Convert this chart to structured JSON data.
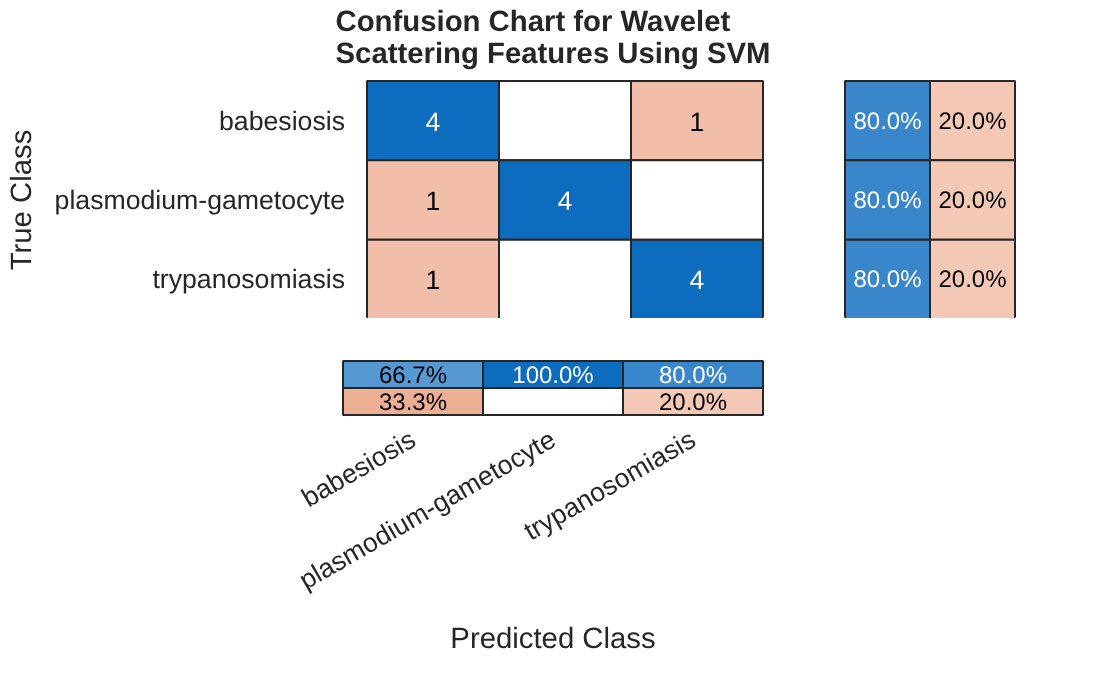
{
  "chart_data": [
    {
      "type": "heatmap",
      "title": "Confusion Chart for Wavelet\nScattering Features Using SVM",
      "ylabel": "True Class",
      "categories": [
        null,
        null,
        null
      ],
      "y_categories": [
        "babesiosis",
        "plasmodium-gametocyte",
        "trypanosomiasis"
      ],
      "cells": [
        [
          4,
          null,
          1
        ],
        [
          1,
          4,
          null
        ],
        [
          1,
          null,
          4
        ]
      ],
      "cell_labels": [
        [
          "4",
          null,
          "1"
        ],
        [
          "1",
          "4",
          null
        ],
        [
          "1",
          null,
          "4"
        ]
      ],
      "tick_labels": "y"
    },
    {
      "type": "heatmap",
      "categories": [
        null,
        null
      ],
      "y_categories": [
        null,
        null,
        null
      ],
      "cells": [
        [
          80,
          20
        ],
        [
          80,
          20
        ],
        [
          80,
          20
        ]
      ],
      "cell_labels": [
        [
          "80.0%",
          "20.0%"
        ],
        [
          "80.0%",
          "20.0%"
        ],
        [
          "80.0%",
          "20.0%"
        ]
      ],
      "tick_labels": false
    },
    {
      "type": "heatmap",
      "xlabel": "Predicted Class",
      "categories": [
        "babesiosis",
        "plasmodium-gametocyte",
        "trypanosomiasis"
      ],
      "y_categories": [
        null,
        null
      ],
      "cells": [
        [
          66.7,
          100,
          80
        ],
        [
          33.3,
          null,
          20
        ]
      ],
      "cell_labels": [
        [
          "66.7%",
          "100.0%",
          "80.0%"
        ],
        [
          "33.3%",
          null,
          "20.0%"
        ]
      ],
      "tick_labels": "x"
    }
  ]
}
